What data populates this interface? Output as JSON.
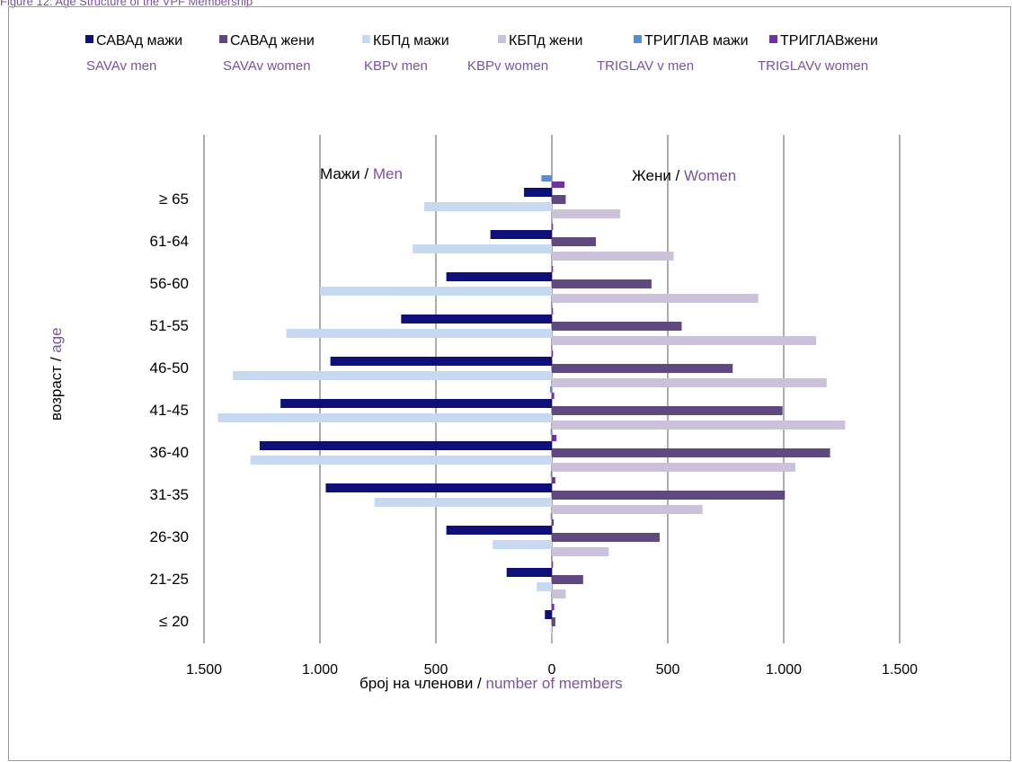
{
  "caption": "Figure 12: Age Structure of the VPF Membership",
  "chart_data": {
    "type": "bar",
    "orientation": "horizontal-population-pyramid",
    "categories": [
      "≤  20",
      "21-25",
      "26-30",
      "31-35",
      "36-40",
      "41-45",
      "46-50",
      "51-55",
      "56-60",
      "61-64",
      "≥  65"
    ],
    "series": [
      {
        "name": "САВАд мажи",
        "name_en": "SAVAv men",
        "side": "left",
        "color": "#0f0f7a",
        "values": [
          30,
          195,
          455,
          975,
          1260,
          1170,
          955,
          650,
          455,
          265,
          120
        ]
      },
      {
        "name": "САВАд жени",
        "name_en": "SAVAv women",
        "side": "right",
        "color": "#5e4a7e",
        "values": [
          15,
          135,
          465,
          1005,
          1200,
          995,
          780,
          560,
          430,
          190,
          60
        ]
      },
      {
        "name": "КБПд мажи",
        "name_en": "KBPv men",
        "side": "left",
        "color": "#c6d9f1",
        "values": [
          5,
          65,
          255,
          765,
          1300,
          1440,
          1375,
          1145,
          1000,
          600,
          550
        ]
      },
      {
        "name": "КБПд жени",
        "name_en": "KBPv women",
        "side": "right",
        "color": "#ccc1da",
        "values": [
          5,
          60,
          245,
          650,
          1050,
          1265,
          1185,
          1140,
          890,
          525,
          295
        ]
      },
      {
        "name": "ТРИГЛАВ мажи",
        "name_en": "TRIGLAV v men",
        "side": "left",
        "color": "#558ed5",
        "values": [
          2,
          3,
          5,
          5,
          5,
          8,
          3,
          3,
          2,
          2,
          45
        ]
      },
      {
        "name": "ТРИГЛАВжени",
        "name_en": "TRIGLAVv women",
        "side": "right",
        "color": "#7030a0",
        "values": [
          10,
          5,
          8,
          15,
          20,
          10,
          5,
          5,
          5,
          5,
          55
        ]
      }
    ],
    "x_ticks": [
      "1.500",
      "1.000",
      "500",
      "0",
      "500",
      "1.000",
      "1.500"
    ],
    "xlim": [
      -1500,
      1500
    ],
    "xlabel": "број на членови",
    "xlabel_en": "number of members",
    "ylabel": "возраст",
    "ylabel_en": "age",
    "side_left_label": "Мажи",
    "side_left_label_en": "Men",
    "side_right_label": "Жени",
    "side_right_label_en": "Women",
    "grid": "vertical",
    "legend_position": "top"
  }
}
